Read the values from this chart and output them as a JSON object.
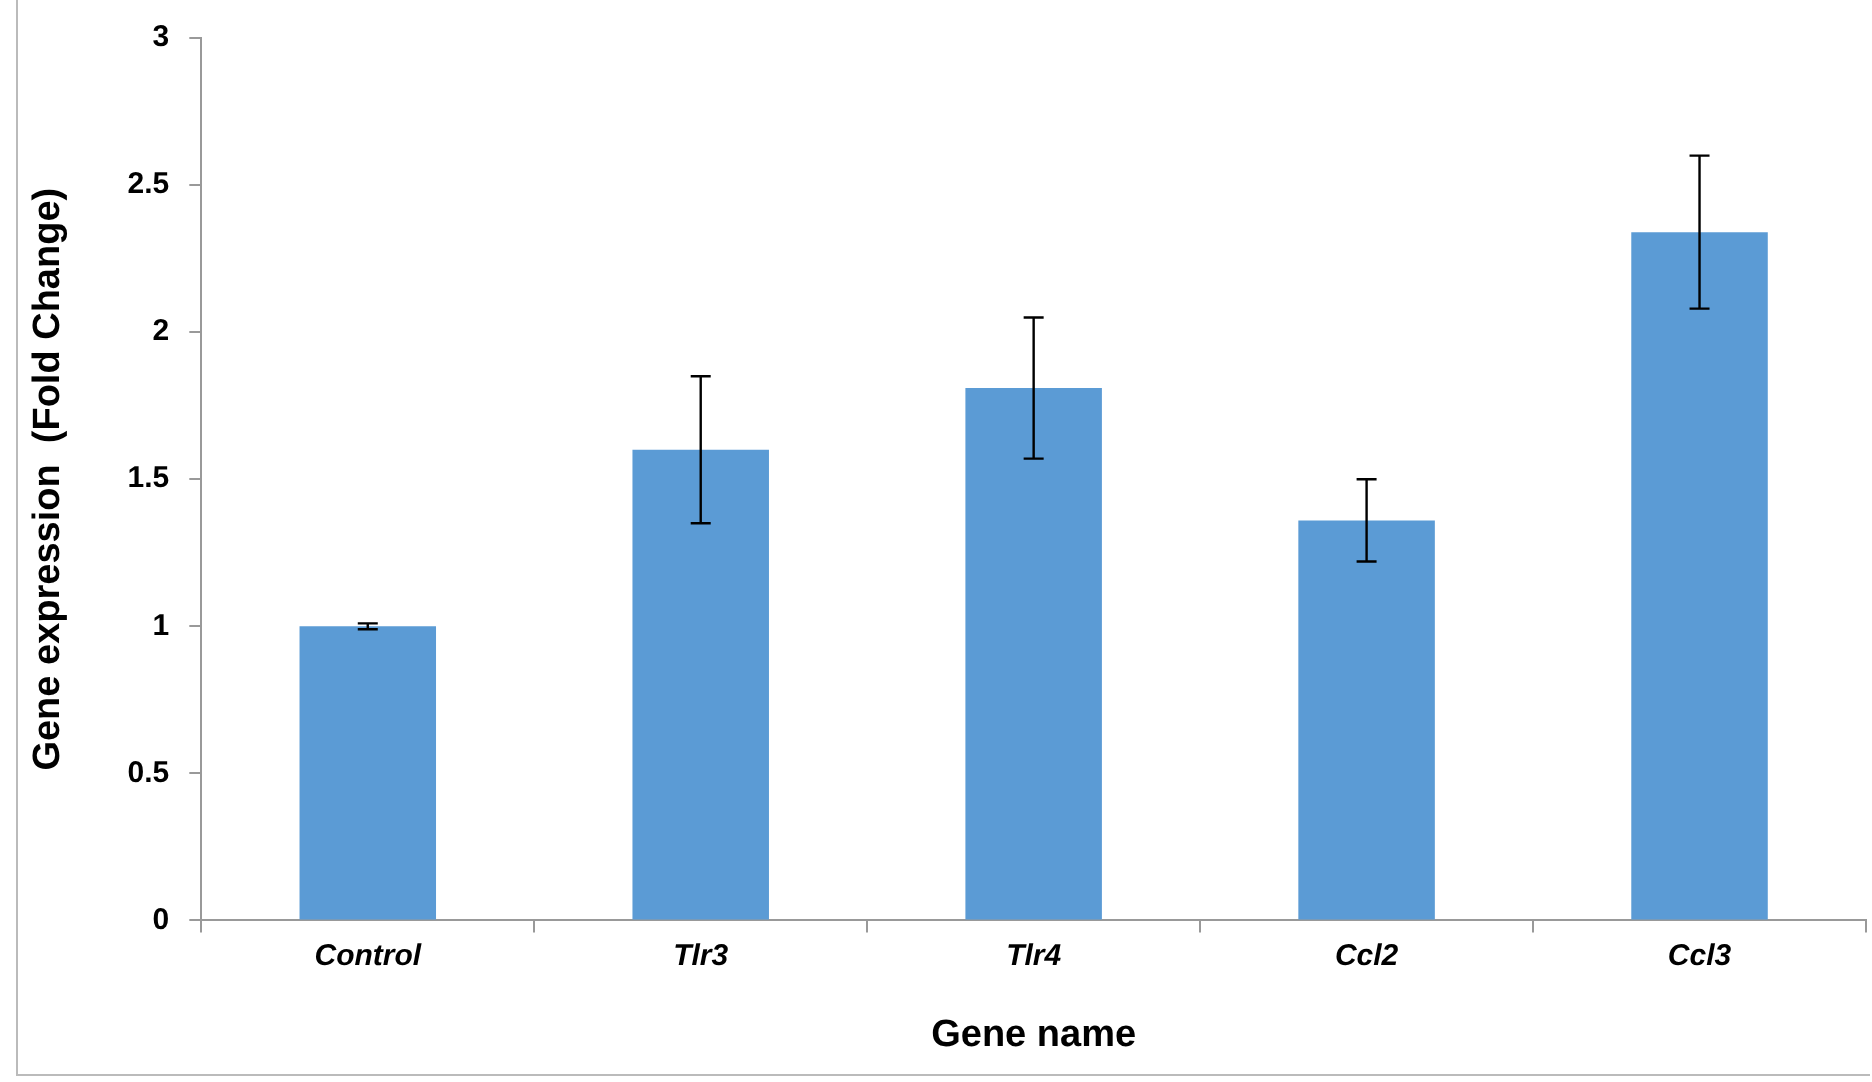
{
  "chart_data": {
    "type": "bar",
    "xlabel": "Gene name",
    "ylabel": "Gene expression  (Fold Change)",
    "categories": [
      "Control",
      "Tlr3",
      "Tlr4",
      "Ccl2",
      "Ccl3"
    ],
    "values": [
      1.0,
      1.6,
      1.81,
      1.36,
      2.34
    ],
    "errors": [
      0.01,
      0.25,
      0.24,
      0.14,
      0.26
    ],
    "color": "#5b9bd5",
    "ylim": [
      0,
      3
    ],
    "yticks": [
      0,
      0.5,
      1,
      1.5,
      2,
      2.5,
      3
    ],
    "grid": false,
    "legend": false
  }
}
